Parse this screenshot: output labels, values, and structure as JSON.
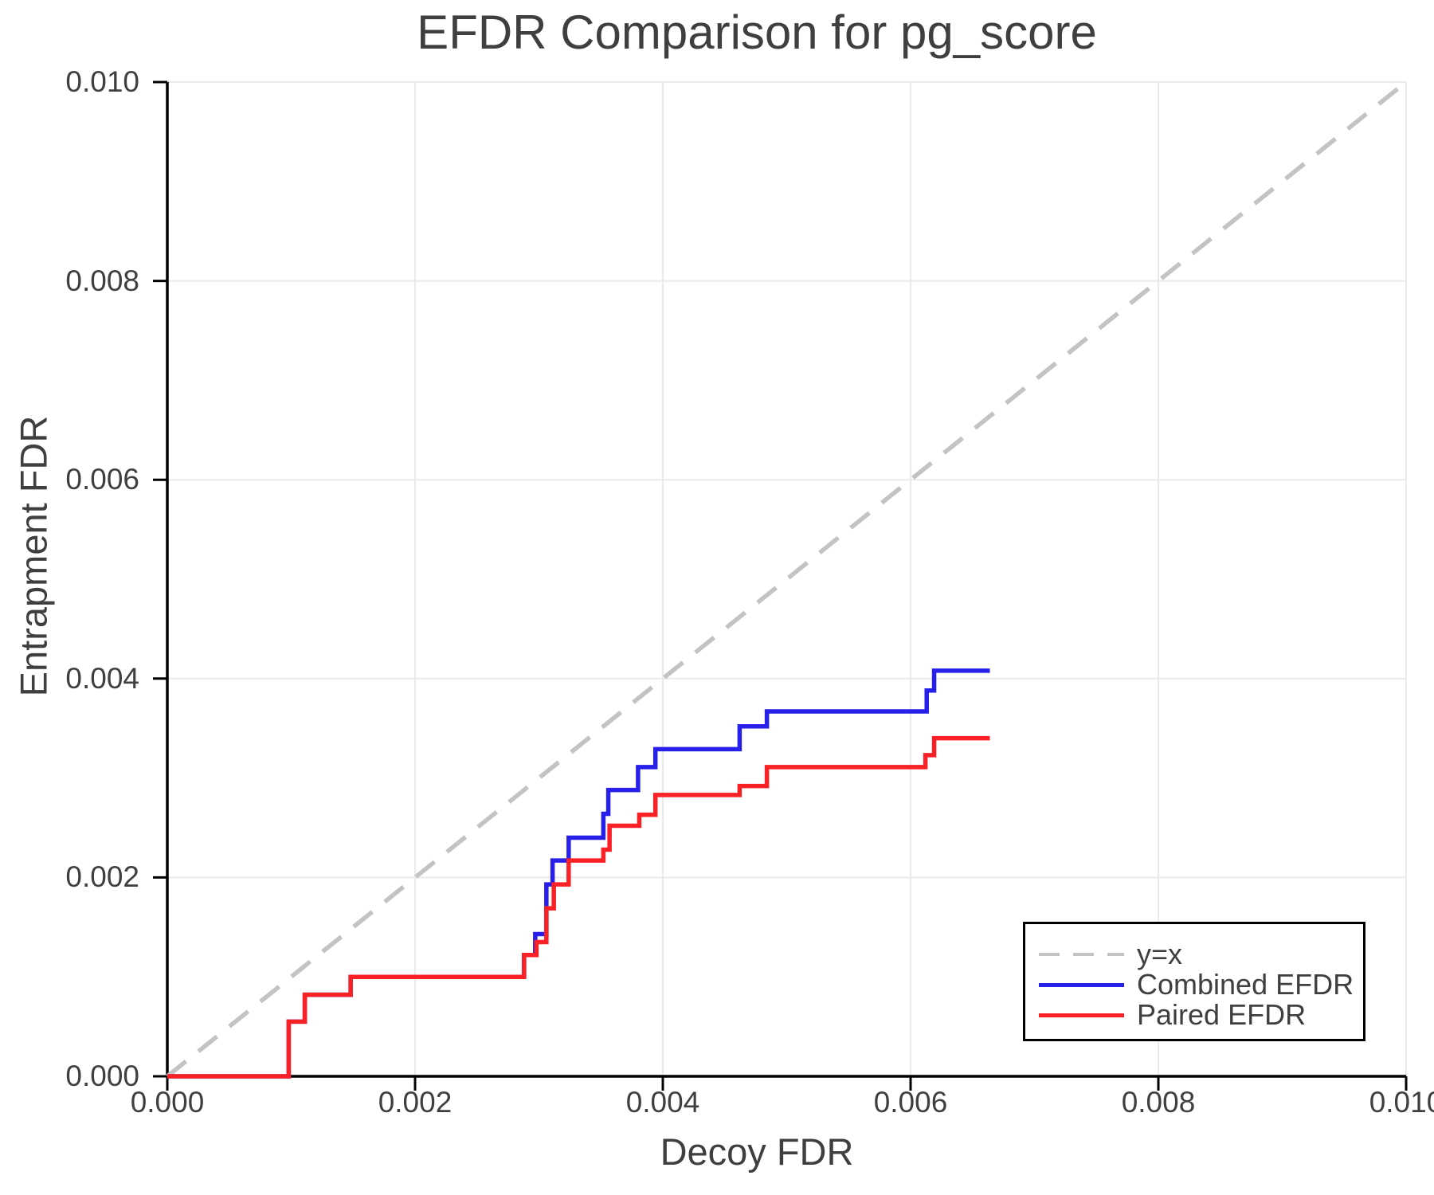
{
  "title": "EFDR Comparison for pg_score",
  "axes": {
    "xlabel": "Decoy FDR",
    "ylabel": "Entrapment FDR",
    "x_tick_labels": [
      "0.000",
      "0.002",
      "0.004",
      "0.006",
      "0.008",
      "0.010"
    ],
    "y_tick_labels": [
      "0.000",
      "0.002",
      "0.004",
      "0.006",
      "0.008",
      "0.010"
    ],
    "tick_values": [
      0,
      0.002,
      0.004,
      0.006,
      0.008,
      0.01
    ]
  },
  "legend": {
    "items": [
      {
        "label": "y=x",
        "color": "#c3c3c3",
        "style": "dashed"
      },
      {
        "label": "Combined EFDR",
        "color": "#2720ea",
        "style": "solid"
      },
      {
        "label": "Paired EFDR",
        "color": "#f92125",
        "style": "solid"
      }
    ]
  },
  "chart_data": {
    "type": "line",
    "title": "EFDR Comparison for pg_score",
    "xlabel": "Decoy FDR",
    "ylabel": "Entrapment FDR",
    "xlim": [
      0.0,
      0.01
    ],
    "ylim": [
      0.0,
      0.01
    ],
    "grid": true,
    "legend_position": "lower right",
    "series": [
      {
        "name": "y=x",
        "type": "line",
        "style": "dashed",
        "color": "#c3c3c3",
        "points": [
          [
            0.0,
            0.0
          ],
          [
            0.01,
            0.01
          ]
        ]
      },
      {
        "name": "Combined EFDR",
        "type": "step",
        "style": "solid",
        "color": "#2720ea",
        "x_end": 0.00664,
        "points": [
          [
            0.0,
            0.0
          ],
          [
            0.00098,
            0.00055
          ],
          [
            0.00111,
            0.00082
          ],
          [
            0.00148,
            0.001
          ],
          [
            0.00288,
            0.00122
          ],
          [
            0.00297,
            0.00143
          ],
          [
            0.00306,
            0.00193
          ],
          [
            0.00311,
            0.00217
          ],
          [
            0.00324,
            0.0024
          ],
          [
            0.00352,
            0.00264
          ],
          [
            0.00356,
            0.00288
          ],
          [
            0.0038,
            0.00311
          ],
          [
            0.00394,
            0.00329
          ],
          [
            0.00462,
            0.00352
          ],
          [
            0.00484,
            0.00367
          ],
          [
            0.00613,
            0.00388
          ],
          [
            0.00619,
            0.00408
          ]
        ]
      },
      {
        "name": "Paired EFDR",
        "type": "step",
        "style": "solid",
        "color": "#f92125",
        "x_end": 0.00664,
        "points": [
          [
            0.0,
            0.0
          ],
          [
            0.00098,
            0.00055
          ],
          [
            0.00111,
            0.00082
          ],
          [
            0.00148,
            0.001
          ],
          [
            0.00288,
            0.00122
          ],
          [
            0.00298,
            0.00135
          ],
          [
            0.00306,
            0.00169
          ],
          [
            0.00312,
            0.00193
          ],
          [
            0.00324,
            0.00217
          ],
          [
            0.00352,
            0.00228
          ],
          [
            0.00357,
            0.00252
          ],
          [
            0.00381,
            0.00263
          ],
          [
            0.00394,
            0.00283
          ],
          [
            0.00462,
            0.00292
          ],
          [
            0.00484,
            0.00311
          ],
          [
            0.00612,
            0.00323
          ],
          [
            0.00619,
            0.0034
          ]
        ]
      }
    ]
  }
}
